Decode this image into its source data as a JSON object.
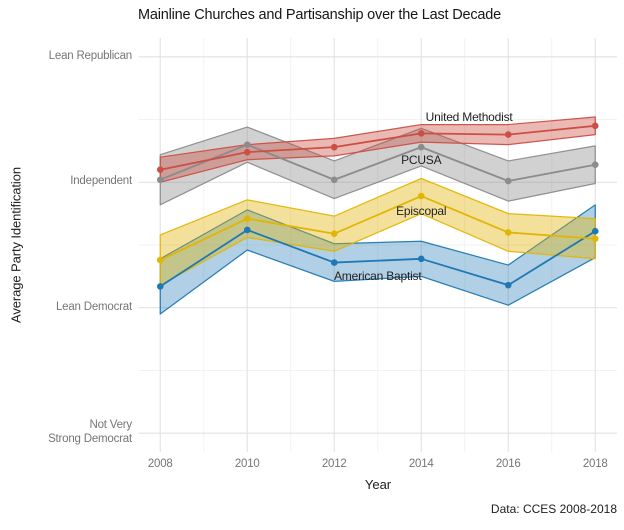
{
  "chart_data": {
    "type": "line",
    "title": "Mainline Churches and Partisanship over the Last Decade",
    "caption": "Data: CCES 2008-2018",
    "xlabel": "Year",
    "ylabel": "Average Party Identification",
    "x": [
      2008,
      2010,
      2012,
      2014,
      2016,
      2018
    ],
    "x_tick_labels": [
      "2008",
      "2010",
      "2012",
      "2014",
      "2016",
      "2018"
    ],
    "xlim": [
      2007.5,
      2018.5
    ],
    "ylim": [
      1.85,
      5.15
    ],
    "y_ticks": [
      {
        "value": 5,
        "label": "Lean Republican"
      },
      {
        "value": 4,
        "label": "Independent"
      },
      {
        "value": 3,
        "label": "Lean Democrat"
      },
      {
        "value": 2,
        "label": "Not Very\nStrong Democrat"
      }
    ],
    "x_minor_ticks": [
      2009,
      2011,
      2013,
      2015,
      2017
    ],
    "y_minor_ticks": [
      2.5,
      3.5,
      4.5
    ],
    "grid": true,
    "legend_position": "inline-labels",
    "series": [
      {
        "name": "American Baptist",
        "color": "#1F78B4",
        "fill_opacity": 0.35,
        "values": [
          3.17,
          3.62,
          3.36,
          3.39,
          3.18,
          3.61
        ],
        "ci": [
          0.22,
          0.16,
          0.15,
          0.14,
          0.16,
          0.21
        ],
        "label": {
          "text": "American Baptist",
          "x": 2013.0,
          "y": 3.25
        }
      },
      {
        "name": "Episcopal",
        "color": "#E2B505",
        "fill_opacity": 0.4,
        "values": [
          3.38,
          3.71,
          3.59,
          3.89,
          3.6,
          3.55
        ],
        "ci": [
          0.2,
          0.15,
          0.14,
          0.14,
          0.15,
          0.16
        ],
        "label": {
          "text": "Episcopal",
          "x": 2014.0,
          "y": 3.77
        }
      },
      {
        "name": "PCUSA",
        "color": "#8C8C8C",
        "fill_opacity": 0.4,
        "values": [
          4.02,
          4.3,
          4.02,
          4.28,
          4.01,
          4.14
        ],
        "ci": [
          0.2,
          0.14,
          0.15,
          0.15,
          0.16,
          0.15
        ],
        "label": {
          "text": "PCUSA",
          "x": 2014.0,
          "y": 4.18
        }
      },
      {
        "name": "United Methodist",
        "color": "#CB4F44",
        "fill_opacity": 0.4,
        "values": [
          4.1,
          4.24,
          4.28,
          4.39,
          4.38,
          4.45
        ],
        "ci": [
          0.1,
          0.06,
          0.07,
          0.07,
          0.08,
          0.07
        ],
        "label": {
          "text": "United Methodist",
          "x": 2015.1,
          "y": 4.52
        }
      }
    ]
  }
}
